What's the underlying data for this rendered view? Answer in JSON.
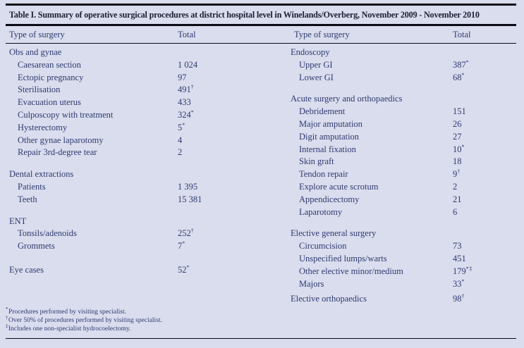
{
  "table": {
    "title": "Table I. Summary of operative surgical procedures at district hospital level in Winelands/Overberg, November 2009 - November 2010",
    "header": {
      "col1": "Type of surgery",
      "col2": "Total",
      "col3": "Type of surgery",
      "col4": "Total"
    },
    "colors": {
      "background": "#dadded",
      "body_text": "#2e3a72",
      "title_text": "#1b2137",
      "rule": "#0b0b16"
    },
    "sections_left": [
      {
        "name": "Obs and gynae",
        "value": "",
        "sup": "",
        "rows": [
          {
            "label": "Caesarean section",
            "value": "1 024",
            "sup": ""
          },
          {
            "label": "Ectopic pregnancy",
            "value": "97",
            "sup": ""
          },
          {
            "label": "Sterilisation",
            "value": "491",
            "sup": "†"
          },
          {
            "label": "Evacuation uterus",
            "value": "433",
            "sup": ""
          },
          {
            "label": "Culposcopy with treatment",
            "value": "324",
            "sup": "*"
          },
          {
            "label": "Hysterectomy",
            "value": "5",
            "sup": "*"
          },
          {
            "label": "Other gynae laparotomy",
            "value": "4",
            "sup": ""
          },
          {
            "label": "Repair 3rd-degree tear",
            "value": "2",
            "sup": ""
          }
        ]
      },
      {
        "name": "Dental extractions",
        "value": "",
        "sup": "",
        "rows": [
          {
            "label": "Patients",
            "value": "1 395",
            "sup": ""
          },
          {
            "label": "Teeth",
            "value": "15 381",
            "sup": ""
          }
        ]
      },
      {
        "name": "ENT",
        "value": "",
        "sup": "",
        "rows": [
          {
            "label": "Tonsils/adenoids",
            "value": "252",
            "sup": "†"
          },
          {
            "label": "Grommets",
            "value": "7",
            "sup": "*"
          }
        ]
      },
      {
        "name": "Eye cases",
        "value": "52",
        "sup": "*",
        "rows": []
      }
    ],
    "sections_right": [
      {
        "name": "Endoscopy",
        "value": "",
        "sup": "",
        "rows": [
          {
            "label": "Upper GI",
            "value": "387",
            "sup": "*"
          },
          {
            "label": "Lower GI",
            "value": "68",
            "sup": "*"
          }
        ]
      },
      {
        "name": "Acute surgery and orthopaedics",
        "value": "",
        "sup": "",
        "rows": [
          {
            "label": "Debridement",
            "value": "151",
            "sup": ""
          },
          {
            "label": "Major amputation",
            "value": "26",
            "sup": ""
          },
          {
            "label": "Digit amputation",
            "value": "27",
            "sup": ""
          },
          {
            "label": "Internal fixation",
            "value": "10",
            "sup": "*"
          },
          {
            "label": "Skin graft",
            "value": "18",
            "sup": ""
          },
          {
            "label": "Tendon repair",
            "value": "9",
            "sup": "†"
          },
          {
            "label": "Explore acute scrotum",
            "value": "2",
            "sup": ""
          },
          {
            "label": "Appendicectomy",
            "value": "21",
            "sup": ""
          },
          {
            "label": "Laparotomy",
            "value": "6",
            "sup": ""
          }
        ]
      },
      {
        "name": "Elective general surgery",
        "value": "",
        "sup": "",
        "rows": [
          {
            "label": "Circumcision",
            "value": "73",
            "sup": ""
          },
          {
            "label": "Unspecified lumps/warts",
            "value": "451",
            "sup": ""
          },
          {
            "label": "Other elective minor/medium",
            "value": "179",
            "sup": "*‡"
          },
          {
            "label": "Majors",
            "value": "33",
            "sup": "*"
          }
        ]
      },
      {
        "name": "Elective orthopaedics",
        "value": "98",
        "sup": "†",
        "rows": []
      }
    ],
    "footnotes": [
      {
        "marker": "*",
        "text": "Procedures performed by visiting specialist."
      },
      {
        "marker": "†",
        "text": "Over 50% of procedures performed by visiting specialist."
      },
      {
        "marker": "‡",
        "text": "Includes one non-specialist hydrocoelectomy."
      }
    ]
  }
}
